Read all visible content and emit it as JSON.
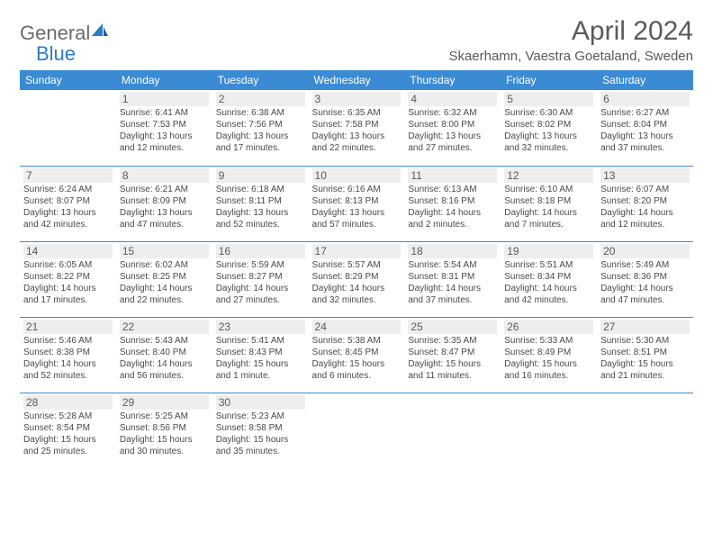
{
  "logo": {
    "word1": "General",
    "word2": "Blue"
  },
  "title": "April 2024",
  "location": "Skaerhamn, Vaestra Goetaland, Sweden",
  "colors": {
    "header_bg": "#3a8bd4",
    "header_text": "#ffffff",
    "daynum_bg": "#eeeeee",
    "text": "#5a5a5a",
    "logo_gray": "#6b6b6b",
    "logo_blue": "#2c7bc4",
    "border": "#3a8bd4"
  },
  "weekdays": [
    "Sunday",
    "Monday",
    "Tuesday",
    "Wednesday",
    "Thursday",
    "Friday",
    "Saturday"
  ],
  "weeks": [
    [
      null,
      {
        "n": "1",
        "sr": "Sunrise: 6:41 AM",
        "ss": "Sunset: 7:53 PM",
        "d1": "Daylight: 13 hours",
        "d2": "and 12 minutes."
      },
      {
        "n": "2",
        "sr": "Sunrise: 6:38 AM",
        "ss": "Sunset: 7:56 PM",
        "d1": "Daylight: 13 hours",
        "d2": "and 17 minutes."
      },
      {
        "n": "3",
        "sr": "Sunrise: 6:35 AM",
        "ss": "Sunset: 7:58 PM",
        "d1": "Daylight: 13 hours",
        "d2": "and 22 minutes."
      },
      {
        "n": "4",
        "sr": "Sunrise: 6:32 AM",
        "ss": "Sunset: 8:00 PM",
        "d1": "Daylight: 13 hours",
        "d2": "and 27 minutes."
      },
      {
        "n": "5",
        "sr": "Sunrise: 6:30 AM",
        "ss": "Sunset: 8:02 PM",
        "d1": "Daylight: 13 hours",
        "d2": "and 32 minutes."
      },
      {
        "n": "6",
        "sr": "Sunrise: 6:27 AM",
        "ss": "Sunset: 8:04 PM",
        "d1": "Daylight: 13 hours",
        "d2": "and 37 minutes."
      }
    ],
    [
      {
        "n": "7",
        "sr": "Sunrise: 6:24 AM",
        "ss": "Sunset: 8:07 PM",
        "d1": "Daylight: 13 hours",
        "d2": "and 42 minutes."
      },
      {
        "n": "8",
        "sr": "Sunrise: 6:21 AM",
        "ss": "Sunset: 8:09 PM",
        "d1": "Daylight: 13 hours",
        "d2": "and 47 minutes."
      },
      {
        "n": "9",
        "sr": "Sunrise: 6:18 AM",
        "ss": "Sunset: 8:11 PM",
        "d1": "Daylight: 13 hours",
        "d2": "and 52 minutes."
      },
      {
        "n": "10",
        "sr": "Sunrise: 6:16 AM",
        "ss": "Sunset: 8:13 PM",
        "d1": "Daylight: 13 hours",
        "d2": "and 57 minutes."
      },
      {
        "n": "11",
        "sr": "Sunrise: 6:13 AM",
        "ss": "Sunset: 8:16 PM",
        "d1": "Daylight: 14 hours",
        "d2": "and 2 minutes."
      },
      {
        "n": "12",
        "sr": "Sunrise: 6:10 AM",
        "ss": "Sunset: 8:18 PM",
        "d1": "Daylight: 14 hours",
        "d2": "and 7 minutes."
      },
      {
        "n": "13",
        "sr": "Sunrise: 6:07 AM",
        "ss": "Sunset: 8:20 PM",
        "d1": "Daylight: 14 hours",
        "d2": "and 12 minutes."
      }
    ],
    [
      {
        "n": "14",
        "sr": "Sunrise: 6:05 AM",
        "ss": "Sunset: 8:22 PM",
        "d1": "Daylight: 14 hours",
        "d2": "and 17 minutes."
      },
      {
        "n": "15",
        "sr": "Sunrise: 6:02 AM",
        "ss": "Sunset: 8:25 PM",
        "d1": "Daylight: 14 hours",
        "d2": "and 22 minutes."
      },
      {
        "n": "16",
        "sr": "Sunrise: 5:59 AM",
        "ss": "Sunset: 8:27 PM",
        "d1": "Daylight: 14 hours",
        "d2": "and 27 minutes."
      },
      {
        "n": "17",
        "sr": "Sunrise: 5:57 AM",
        "ss": "Sunset: 8:29 PM",
        "d1": "Daylight: 14 hours",
        "d2": "and 32 minutes."
      },
      {
        "n": "18",
        "sr": "Sunrise: 5:54 AM",
        "ss": "Sunset: 8:31 PM",
        "d1": "Daylight: 14 hours",
        "d2": "and 37 minutes."
      },
      {
        "n": "19",
        "sr": "Sunrise: 5:51 AM",
        "ss": "Sunset: 8:34 PM",
        "d1": "Daylight: 14 hours",
        "d2": "and 42 minutes."
      },
      {
        "n": "20",
        "sr": "Sunrise: 5:49 AM",
        "ss": "Sunset: 8:36 PM",
        "d1": "Daylight: 14 hours",
        "d2": "and 47 minutes."
      }
    ],
    [
      {
        "n": "21",
        "sr": "Sunrise: 5:46 AM",
        "ss": "Sunset: 8:38 PM",
        "d1": "Daylight: 14 hours",
        "d2": "and 52 minutes."
      },
      {
        "n": "22",
        "sr": "Sunrise: 5:43 AM",
        "ss": "Sunset: 8:40 PM",
        "d1": "Daylight: 14 hours",
        "d2": "and 56 minutes."
      },
      {
        "n": "23",
        "sr": "Sunrise: 5:41 AM",
        "ss": "Sunset: 8:43 PM",
        "d1": "Daylight: 15 hours",
        "d2": "and 1 minute."
      },
      {
        "n": "24",
        "sr": "Sunrise: 5:38 AM",
        "ss": "Sunset: 8:45 PM",
        "d1": "Daylight: 15 hours",
        "d2": "and 6 minutes."
      },
      {
        "n": "25",
        "sr": "Sunrise: 5:35 AM",
        "ss": "Sunset: 8:47 PM",
        "d1": "Daylight: 15 hours",
        "d2": "and 11 minutes."
      },
      {
        "n": "26",
        "sr": "Sunrise: 5:33 AM",
        "ss": "Sunset: 8:49 PM",
        "d1": "Daylight: 15 hours",
        "d2": "and 16 minutes."
      },
      {
        "n": "27",
        "sr": "Sunrise: 5:30 AM",
        "ss": "Sunset: 8:51 PM",
        "d1": "Daylight: 15 hours",
        "d2": "and 21 minutes."
      }
    ],
    [
      {
        "n": "28",
        "sr": "Sunrise: 5:28 AM",
        "ss": "Sunset: 8:54 PM",
        "d1": "Daylight: 15 hours",
        "d2": "and 25 minutes."
      },
      {
        "n": "29",
        "sr": "Sunrise: 5:25 AM",
        "ss": "Sunset: 8:56 PM",
        "d1": "Daylight: 15 hours",
        "d2": "and 30 minutes."
      },
      {
        "n": "30",
        "sr": "Sunrise: 5:23 AM",
        "ss": "Sunset: 8:58 PM",
        "d1": "Daylight: 15 hours",
        "d2": "and 35 minutes."
      },
      null,
      null,
      null,
      null
    ]
  ]
}
